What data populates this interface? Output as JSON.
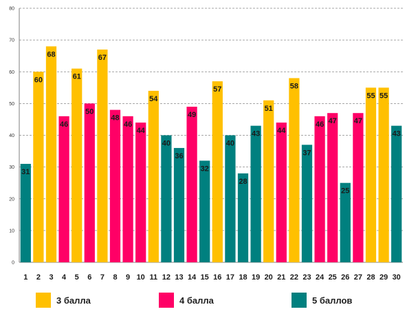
{
  "chart_data": {
    "type": "bar",
    "categories": [
      "1",
      "2",
      "3",
      "4",
      "5",
      "6",
      "7",
      "8",
      "9",
      "10",
      "11",
      "12",
      "13",
      "14",
      "15",
      "16",
      "17",
      "18",
      "19",
      "20",
      "21",
      "22",
      "23",
      "24",
      "25",
      "26",
      "27",
      "28",
      "29",
      "30"
    ],
    "values": [
      31,
      60,
      68,
      46,
      61,
      50,
      67,
      48,
      46,
      44,
      54,
      40,
      36,
      49,
      32,
      57,
      40,
      28,
      43,
      51,
      44,
      58,
      37,
      46,
      47,
      25,
      47,
      55,
      55,
      43
    ],
    "groups": [
      5,
      3,
      3,
      4,
      3,
      4,
      3,
      4,
      4,
      4,
      3,
      5,
      5,
      4,
      5,
      3,
      5,
      5,
      5,
      3,
      4,
      3,
      5,
      4,
      4,
      5,
      4,
      3,
      3,
      5
    ],
    "ylim": [
      0,
      80
    ],
    "yticks": [
      "0",
      "10",
      "20",
      "30",
      "40",
      "50",
      "60",
      "70",
      "80"
    ],
    "grid": "horizontal-dashed",
    "legend_position": "bottom",
    "title": "",
    "xlabel": "",
    "ylabel": "",
    "series": [
      {
        "key": 3,
        "name": "3 балла",
        "color": "#FFC000"
      },
      {
        "key": 4,
        "name": "4 балла",
        "color": "#FF0066"
      },
      {
        "key": 5,
        "name": "5 баллов",
        "color": "#00807F"
      }
    ]
  }
}
